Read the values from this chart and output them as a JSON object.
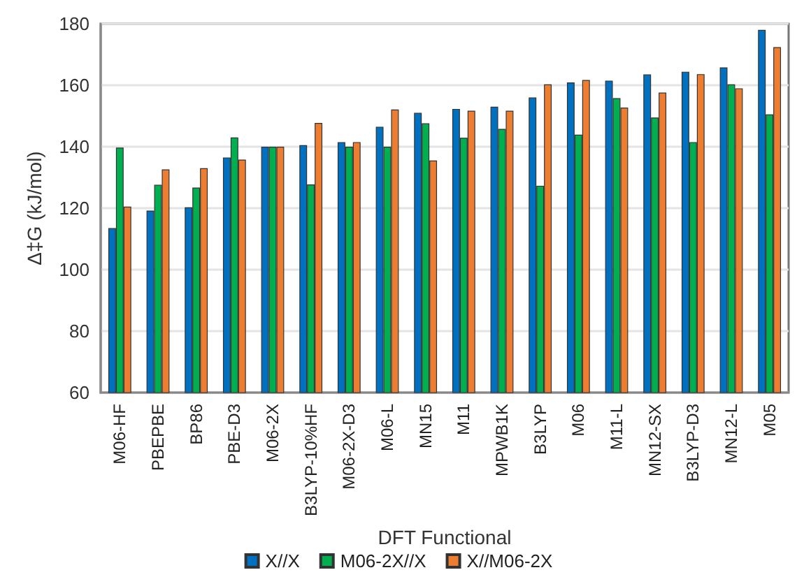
{
  "chart_data": {
    "type": "bar",
    "xlabel": "DFT Functional",
    "ylabel": "Δ‡G (kJ/mol)",
    "categories": [
      "M06-HF",
      "PBEPBE",
      "BP86",
      "PBE-D3",
      "M06-2X",
      "B3LYP-10%HF",
      "M06-2X-D3",
      "M06-L",
      "MN15",
      "M11",
      "MPWB1K",
      "B3LYP",
      "M06",
      "M11-L",
      "MN12-SX",
      "B3LYP-D3",
      "MN12-L",
      "M05"
    ],
    "series": [
      {
        "name": "X//X",
        "color": "#0070c0",
        "values": [
          113.5,
          119.2,
          120.3,
          136.5,
          140,
          140.5,
          141.5,
          146.5,
          151,
          152.3,
          153,
          156,
          160.9,
          161.5,
          163.5,
          164.4,
          165.8,
          178
        ]
      },
      {
        "name": "M06-2X//X",
        "color": "#00b050",
        "values": [
          139.7,
          127.6,
          126.7,
          143,
          140,
          127.7,
          140,
          140,
          147.6,
          142.9,
          145.8,
          127.3,
          143.9,
          155.8,
          149.5,
          141.5,
          160.3,
          150.5
        ]
      },
      {
        "name": "X//M06-2X",
        "color": "#ed7d31",
        "values": [
          120.5,
          132.6,
          133,
          135.8,
          140,
          147.7,
          141.5,
          152.1,
          135.5,
          151.7,
          151.7,
          160.3,
          161.7,
          152.7,
          157.6,
          163.6,
          159,
          172.4
        ]
      }
    ],
    "ylim": [
      60,
      180
    ],
    "yticks": [
      60,
      80,
      100,
      120,
      140,
      160,
      180
    ],
    "grid": "y",
    "legend": "bottom"
  }
}
